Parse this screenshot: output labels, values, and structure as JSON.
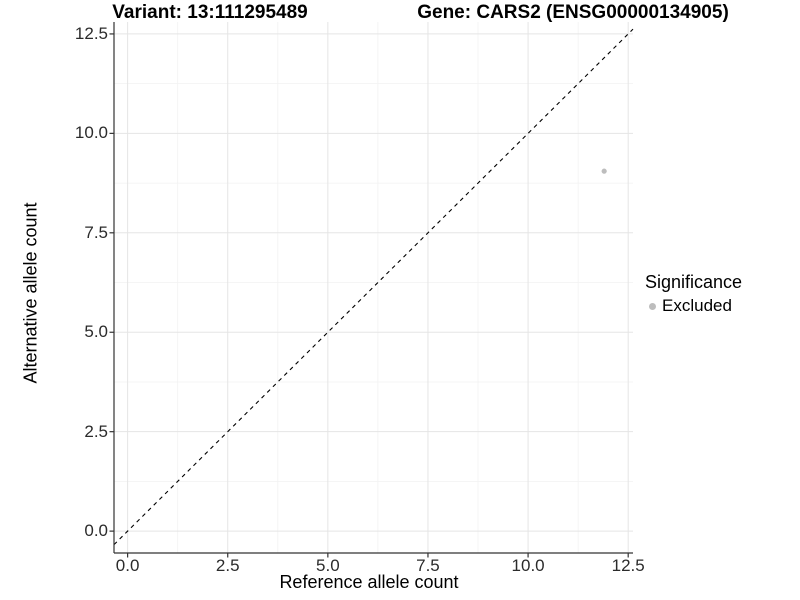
{
  "titles": {
    "variant": "Variant: 13:111295489",
    "gene": "Gene: CARS2 (ENSG00000134905)"
  },
  "legend": {
    "title": "Significance",
    "items": [
      {
        "label": "Excluded",
        "color": "#bdbdbd"
      }
    ]
  },
  "colors": {
    "background": "#ffffff",
    "axis_line": "#333333",
    "tick_mark": "#333333",
    "grid_major": "#e5e5e5",
    "grid_minor": "#f2f2f2",
    "reference_line": "#000000",
    "point": "#bdbdbd",
    "text": "#000000"
  },
  "chart_data": {
    "type": "scatter",
    "title": "Variant: 13:111295489 — Gene: CARS2 (ENSG00000134905)",
    "xlabel": "Reference allele count",
    "ylabel": "Alternative allele count",
    "xlim": [
      -0.34,
      12.62
    ],
    "ylim": [
      -0.55,
      12.8
    ],
    "x_ticks": [
      0,
      2.5,
      5,
      7.5,
      10,
      12.5
    ],
    "y_ticks": [
      0,
      2.5,
      5,
      7.5,
      10,
      12.5
    ],
    "x_tick_labels": [
      "0.0",
      "2.5",
      "5.0",
      "7.5",
      "10.0",
      "12.5"
    ],
    "y_tick_labels": [
      "0.0",
      "2.5",
      "5.0",
      "7.5",
      "10.0",
      "12.5"
    ],
    "grid": {
      "major": true,
      "minor": true
    },
    "legend_position": "right",
    "series": [
      {
        "name": "Excluded",
        "color": "#bdbdbd",
        "points": [
          {
            "x": 11.9,
            "y": 9.05
          }
        ]
      }
    ],
    "reference_line": {
      "equation": "y = x",
      "slope": 1,
      "intercept": 0,
      "style": "dashed",
      "color": "#000000"
    }
  }
}
